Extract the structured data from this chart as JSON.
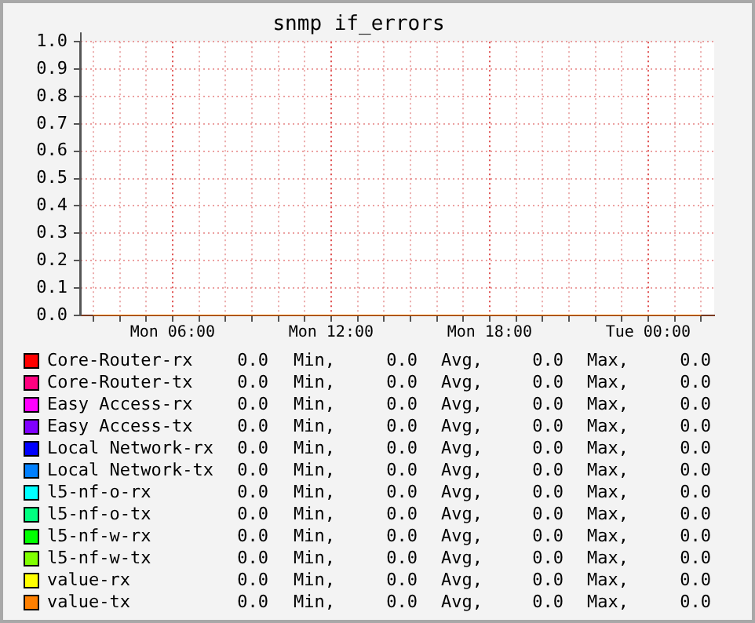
{
  "chart_data": {
    "type": "line",
    "title": "snmp if_errors",
    "categories": [
      null,
      null,
      null,
      "Mon 06:00",
      null,
      null,
      null,
      null,
      null,
      "Mon 12:00",
      null,
      null,
      null,
      null,
      null,
      "Mon 18:00",
      null,
      null,
      null,
      null,
      null,
      "Tue 00:00",
      null,
      null
    ],
    "ylim": [
      0,
      1
    ],
    "yticks": [
      {
        "value": 0,
        "label": "0.0"
      },
      {
        "value": 0.1,
        "label": "0.1"
      },
      {
        "value": 0.2,
        "label": "0.2"
      },
      {
        "value": 0.3,
        "label": "0.3"
      },
      {
        "value": 0.4,
        "label": "0.4"
      },
      {
        "value": 0.5,
        "label": "0.5"
      },
      {
        "value": 0.6,
        "label": "0.6"
      },
      {
        "value": 0.7,
        "label": "0.7"
      },
      {
        "value": 0.8,
        "label": "0.8"
      },
      {
        "value": 0.9,
        "label": "0.9"
      },
      {
        "value": 1,
        "label": "1.0"
      }
    ],
    "grid": true,
    "legend": "bottom",
    "marker": "none",
    "line_style": "solid",
    "series": [
      {
        "name": "Core-Router-rx",
        "color": "#ff0000",
        "values": [
          null,
          null,
          null,
          null,
          null,
          null,
          null,
          null,
          null,
          null,
          null,
          null,
          null,
          null,
          null,
          null,
          null,
          null,
          null,
          null,
          null,
          null,
          null,
          null
        ]
      },
      {
        "name": "Core-Router-tx",
        "color": "#ff0080",
        "values": [
          null,
          null,
          null,
          null,
          null,
          null,
          null,
          null,
          null,
          null,
          null,
          null,
          null,
          null,
          null,
          null,
          null,
          null,
          null,
          null,
          null,
          null,
          null,
          null
        ]
      },
      {
        "name": "Easy Access-rx",
        "color": "#ff00ff",
        "values": [
          null,
          null,
          null,
          null,
          null,
          null,
          null,
          null,
          null,
          null,
          null,
          null,
          null,
          null,
          null,
          null,
          null,
          null,
          null,
          null,
          null,
          null,
          null,
          null
        ]
      },
      {
        "name": "Easy Access-tx",
        "color": "#8000ff",
        "values": [
          null,
          null,
          null,
          null,
          null,
          null,
          null,
          null,
          null,
          null,
          null,
          null,
          null,
          null,
          null,
          null,
          null,
          null,
          null,
          null,
          null,
          null,
          null,
          null
        ]
      },
      {
        "name": "Local Network-rx",
        "color": "#0000ff",
        "values": [
          null,
          null,
          null,
          null,
          null,
          null,
          null,
          null,
          null,
          null,
          null,
          null,
          null,
          null,
          null,
          null,
          null,
          null,
          null,
          null,
          null,
          null,
          null,
          null
        ]
      },
      {
        "name": "Local Network-tx",
        "color": "#0080ff",
        "values": [
          null,
          null,
          null,
          null,
          null,
          null,
          null,
          null,
          null,
          null,
          null,
          null,
          null,
          null,
          null,
          null,
          null,
          null,
          null,
          null,
          null,
          null,
          null,
          null
        ]
      },
      {
        "name": "l5-nf-o-rx",
        "color": "#00ffff",
        "values": [
          null,
          null,
          null,
          null,
          null,
          null,
          null,
          null,
          null,
          null,
          null,
          null,
          null,
          null,
          null,
          null,
          null,
          null,
          null,
          null,
          null,
          null,
          null,
          null
        ]
      },
      {
        "name": "l5-nf-o-tx",
        "color": "#00ff80",
        "values": [
          null,
          null,
          null,
          null,
          null,
          null,
          null,
          null,
          null,
          null,
          null,
          null,
          null,
          null,
          null,
          null,
          null,
          null,
          null,
          null,
          null,
          null,
          null,
          null
        ]
      },
      {
        "name": "l5-nf-w-rx",
        "color": "#00ff00",
        "values": [
          null,
          null,
          null,
          null,
          null,
          null,
          null,
          null,
          null,
          null,
          null,
          null,
          null,
          null,
          null,
          null,
          null,
          null,
          null,
          null,
          null,
          null,
          null,
          null
        ]
      },
      {
        "name": "l5-nf-w-tx",
        "color": "#80ff00",
        "values": [
          null,
          null,
          null,
          null,
          null,
          null,
          null,
          null,
          null,
          null,
          null,
          null,
          null,
          null,
          null,
          null,
          null,
          null,
          null,
          null,
          null,
          null,
          null,
          null
        ]
      },
      {
        "name": "value-rx",
        "color": "#ffff00",
        "values": [
          null,
          null,
          null,
          null,
          null,
          null,
          null,
          null,
          null,
          null,
          null,
          null,
          null,
          null,
          null,
          null,
          null,
          null,
          null,
          null,
          null,
          null,
          null,
          null
        ]
      },
      {
        "name": "value-tx",
        "color": "#ff8000",
        "values": [
          0,
          0,
          0,
          0,
          0,
          0,
          0,
          0,
          0,
          0,
          0,
          0,
          0,
          0,
          0,
          0,
          0,
          0,
          0,
          0,
          0,
          0,
          0,
          0
        ]
      }
    ],
    "annotations": [
      "0.0 Min, 0.0 Avg, 0.0 Max, 0.0",
      "0.0 Min, 0.0 Avg, 0.0 Max, 0.0",
      "0.0 Min, 0.0 Avg, 0.0 Max, 0.0",
      "0.0 Min, 0.0 Avg, 0.0 Max, 0.0",
      "0.0 Min, 0.0 Avg, 0.0 Max, 0.0",
      "0.0 Min, 0.0 Avg, 0.0 Max, 0.0",
      "0.0 Min, 0.0 Avg, 0.0 Max, 0.0",
      "0.0 Min, 0.0 Avg, 0.0 Max, 0.0",
      "0.0 Min, 0.0 Avg, 0.0 Max, 0.0",
      "0.0 Min, 0.0 Avg, 0.0 Max, 0.0",
      "0.0 Min, 0.0 Avg, 0.0 Max, 0.0",
      "0.0 Min, 0.0 Avg, 0.0 Max, 0.0"
    ]
  }
}
